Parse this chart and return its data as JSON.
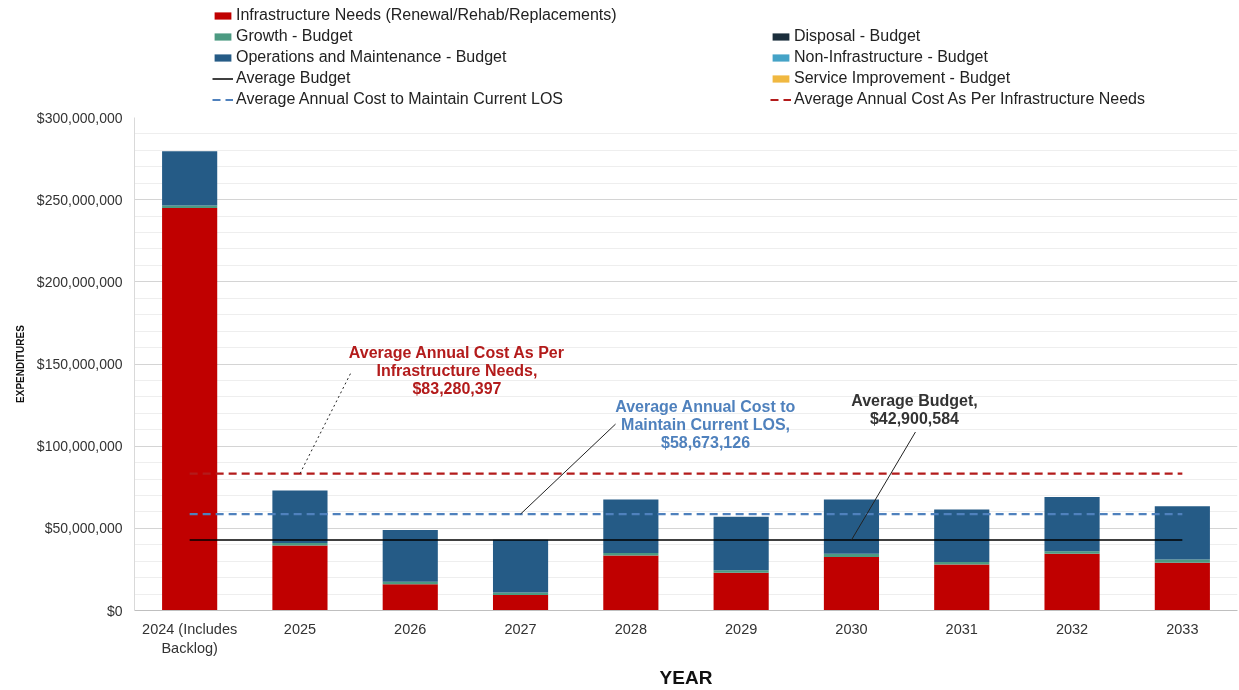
{
  "chart_data": {
    "type": "bar",
    "stacked": true,
    "xlabel": "YEAR",
    "ylabel": "EXPENDITURES",
    "grid": "y",
    "legend": "top",
    "categories": [
      "2024 (Includes Backlog)",
      "2025",
      "2026",
      "2027",
      "2028",
      "2029",
      "2030",
      "2031",
      "2032",
      "2033"
    ],
    "ylim": [
      0,
      300000000
    ],
    "yticks": [
      {
        "value": 0,
        "label": "$0"
      },
      {
        "value": 50000000,
        "label": "$50,000,000"
      },
      {
        "value": 100000000,
        "label": "$100,000,000"
      },
      {
        "value": 150000000,
        "label": "$150,000,000"
      },
      {
        "value": 200000000,
        "label": "$200,000,000"
      },
      {
        "value": 250000000,
        "label": "$250,000,000"
      },
      {
        "value": 300000000,
        "label": "$300,000,000"
      }
    ],
    "series": [
      {
        "name": "Infrastructure Needs (Renewal/Rehab/Replacements)",
        "color": "#c00000",
        "values": [
          245000000,
          39500000,
          16000000,
          9500000,
          33500000,
          23000000,
          32500000,
          28000000,
          34500000,
          29000000
        ]
      },
      {
        "name": "Disposal - Budget",
        "color": "#1b2e3c",
        "values": [
          null,
          null,
          null,
          null,
          null,
          null,
          null,
          null,
          null,
          null
        ]
      },
      {
        "name": "Growth - Budget",
        "color": "#4c9a82",
        "values": [
          1500000,
          1500000,
          1500000,
          1500000,
          1500000,
          1500000,
          2000000,
          1500000,
          1500000,
          2000000
        ]
      },
      {
        "name": "Non-Infrastructure - Budget",
        "color": "#45a3c7",
        "values": [
          null,
          null,
          null,
          null,
          null,
          null,
          null,
          null,
          null,
          null
        ]
      },
      {
        "name": "Operations and Maintenance - Budget",
        "color": "#255b86",
        "values": [
          33000000,
          32000000,
          31500000,
          32000000,
          32500000,
          32500000,
          33000000,
          32000000,
          33000000,
          32500000
        ]
      },
      {
        "name": "Service Improvement - Budget",
        "color": "#f0b840",
        "values": [
          null,
          null,
          null,
          null,
          null,
          null,
          null,
          null,
          null,
          null
        ]
      },
      {
        "name": "Average Budget",
        "type": "line",
        "color": "#000000",
        "line_style": "solid",
        "values": [
          42900584,
          42900584,
          42900584,
          42900584,
          42900584,
          42900584,
          42900584,
          42900584,
          42900584,
          42900584
        ]
      },
      {
        "name": "Average Annual Cost As Per Infrastructure Needs",
        "type": "line",
        "color": "#b31b1b",
        "line_style": "dashed",
        "values": [
          83280397,
          83280397,
          83280397,
          83280397,
          83280397,
          83280397,
          83280397,
          83280397,
          83280397,
          83280397
        ]
      },
      {
        "name": "Average Annual Cost to Maintain Current LOS",
        "type": "line",
        "color": "#4f81bd",
        "line_style": "dashed",
        "values": [
          58673126,
          58673126,
          58673126,
          58673126,
          58673126,
          58673126,
          58673126,
          58673126,
          58673126,
          58673126
        ]
      }
    ],
    "annotations": [
      {
        "text": "Average Annual Cost As Per Infrastructure Needs, $83,280,397",
        "x": "2025",
        "y": 83280397
      },
      {
        "text": "Average Annual Cost to Maintain Current LOS, $58,673,126",
        "x": "2027",
        "y": 58673126
      },
      {
        "text": "Average Budget, $42,900,584",
        "x": "2030",
        "y": 42900584
      }
    ]
  }
}
